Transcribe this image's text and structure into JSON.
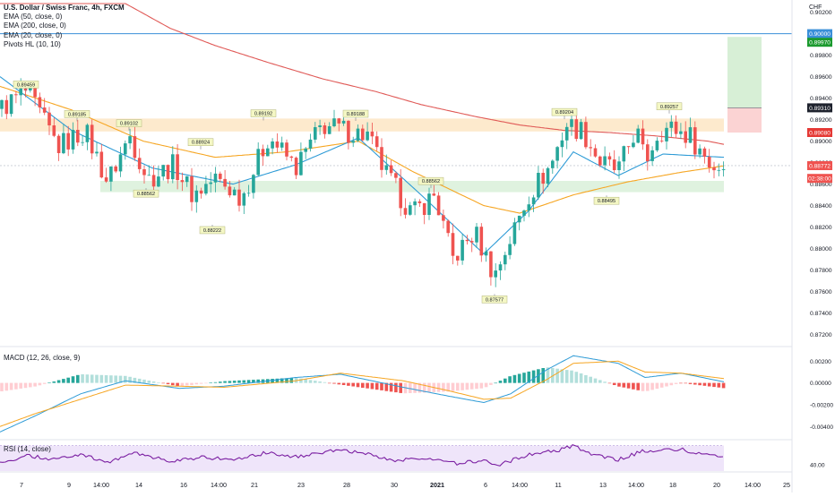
{
  "header": {
    "title": "U.S. Dollar / Swiss Franc, 4h, FXCM",
    "indicators": [
      "EMA (50, close, 0)",
      "EMA (200, close, 0)",
      "EMA (20, close, 0)",
      "Pivots HL (10, 10)"
    ],
    "currency": "CHF"
  },
  "macd_label": "MACD (12, 26, close, 9)",
  "rsi_label": "RSI (14, close)",
  "colors": {
    "up": "#26a69a",
    "down": "#ef5350",
    "ema50": "#f6a623",
    "ema200": "#e05a57",
    "ema20": "#2e9bd6",
    "target_zone": "#d7efd6",
    "stop_zone": "#fbd3d3",
    "resistance_zone": "#fde6c4",
    "support_zone": "#dcf1dc",
    "hline": "#3a8fd8",
    "rsi_line": "#7b1fa2",
    "rsi_band": "#efe5fa"
  },
  "chart_data": {
    "type": "candlestick",
    "y_range": [
      0.8713,
      0.9028
    ],
    "y_ticks": [
      "0.90200",
      "0.90000",
      "0.89800",
      "0.89600",
      "0.89400",
      "0.89200",
      "0.89000",
      "0.88800",
      "0.88600",
      "0.88400",
      "0.88200",
      "0.88000",
      "0.87800",
      "0.87600",
      "0.87400",
      "0.87200"
    ],
    "x_ticks": [
      "7",
      "9",
      "14:00",
      "14",
      "16",
      "14:00",
      "21",
      "23",
      "28",
      "30",
      "2021",
      "6",
      "14:00",
      "11",
      "13",
      "14:00",
      "18",
      "20",
      "14:00",
      "25"
    ],
    "price_labels": [
      {
        "text": "0.90000",
        "kind": "hline"
      },
      {
        "text": "0.89970",
        "kind": "target"
      },
      {
        "text": "0.89310",
        "kind": "entry"
      },
      {
        "text": "0.89080",
        "kind": "stop"
      },
      {
        "text": "0.88772",
        "kind": "last"
      },
      {
        "text": "02:38:00",
        "kind": "countdown"
      }
    ],
    "pivots": [
      {
        "label": "0.89459",
        "x": 29,
        "value": 0.8946,
        "side": "high"
      },
      {
        "label": "0.89185",
        "x": 86,
        "value": 0.89185,
        "side": "high"
      },
      {
        "label": "0.89102",
        "x": 144,
        "value": 0.891,
        "side": "high"
      },
      {
        "label": "0.88924",
        "x": 224,
        "value": 0.88924,
        "side": "high"
      },
      {
        "label": "0.89192",
        "x": 294,
        "value": 0.89192,
        "side": "high"
      },
      {
        "label": "0.89188",
        "x": 397,
        "value": 0.89188,
        "side": "high"
      },
      {
        "label": "0.88562",
        "x": 481,
        "value": 0.88562,
        "side": "high"
      },
      {
        "label": "0.89204",
        "x": 630,
        "value": 0.89204,
        "side": "high"
      },
      {
        "label": "0.89257",
        "x": 747,
        "value": 0.89257,
        "side": "high"
      },
      {
        "label": "0.88562",
        "x": 163,
        "value": 0.88562,
        "side": "low"
      },
      {
        "label": "0.88222",
        "x": 237,
        "value": 0.88222,
        "side": "low"
      },
      {
        "label": "0.87577",
        "x": 552,
        "value": 0.87577,
        "side": "low"
      },
      {
        "label": "0.88495",
        "x": 677,
        "value": 0.88495,
        "side": "low"
      }
    ],
    "zones": {
      "resistance": [
        0.8909,
        0.8921
      ],
      "support": [
        0.88525,
        0.8863
      ],
      "target": [
        0.8931,
        0.8997
      ],
      "stop": [
        0.8908,
        0.8931
      ]
    },
    "ema200": [
      [
        0.9028,
        140
      ],
      [
        0.9005,
        190
      ],
      [
        0.8989,
        240
      ],
      [
        0.8973,
        300
      ],
      [
        0.8958,
        360
      ],
      [
        0.8946,
        420
      ],
      [
        0.8934,
        470
      ],
      [
        0.8923,
        530
      ],
      [
        0.8915,
        580
      ],
      [
        0.891,
        630
      ],
      [
        0.8908,
        680
      ],
      [
        0.8905,
        730
      ],
      [
        0.89,
        790
      ],
      [
        0.8897,
        808
      ]
    ],
    "ema50": [
      [
        0.8951,
        0
      ],
      [
        0.8929,
        80
      ],
      [
        0.89,
        160
      ],
      [
        0.8885,
        240
      ],
      [
        0.889,
        320
      ],
      [
        0.89,
        400
      ],
      [
        0.8872,
        460
      ],
      [
        0.884,
        540
      ],
      [
        0.8833,
        580
      ],
      [
        0.885,
        640
      ],
      [
        0.8862,
        700
      ],
      [
        0.8871,
        760
      ],
      [
        0.8877,
        808
      ]
    ],
    "ema20": [
      [
        0.896,
        0
      ],
      [
        0.891,
        80
      ],
      [
        0.8875,
        170
      ],
      [
        0.886,
        260
      ],
      [
        0.8878,
        330
      ],
      [
        0.8903,
        400
      ],
      [
        0.885,
        470
      ],
      [
        0.8795,
        540
      ],
      [
        0.8835,
        590
      ],
      [
        0.889,
        640
      ],
      [
        0.8868,
        690
      ],
      [
        0.8888,
        740
      ],
      [
        0.8885,
        808
      ]
    ],
    "ohlc_waypoints": [
      [
        0.893,
        0
      ],
      [
        0.8946,
        29
      ],
      [
        0.8895,
        65
      ],
      [
        0.891,
        95
      ],
      [
        0.8862,
        120
      ],
      [
        0.8905,
        145
      ],
      [
        0.8865,
        165
      ],
      [
        0.8878,
        195
      ],
      [
        0.885,
        215
      ],
      [
        0.8865,
        240
      ],
      [
        0.8848,
        270
      ],
      [
        0.8905,
        300
      ],
      [
        0.8875,
        330
      ],
      [
        0.8915,
        360
      ],
      [
        0.8905,
        410
      ],
      [
        0.887,
        430
      ],
      [
        0.8832,
        460
      ],
      [
        0.885,
        485
      ],
      [
        0.879,
        505
      ],
      [
        0.8815,
        530
      ],
      [
        0.8775,
        552
      ],
      [
        0.88,
        565
      ],
      [
        0.885,
        590
      ],
      [
        0.8878,
        615
      ],
      [
        0.8916,
        632
      ],
      [
        0.891,
        650
      ],
      [
        0.888,
        670
      ],
      [
        0.8872,
        690
      ],
      [
        0.8912,
        710
      ],
      [
        0.888,
        720
      ],
      [
        0.891,
        735
      ],
      [
        0.8912,
        750
      ],
      [
        0.8905,
        770
      ],
      [
        0.8876,
        795
      ],
      [
        0.8877,
        808
      ]
    ],
    "macd": {
      "label": "MACD (12, 26, close, 9)",
      "y_range": [
        -0.0048,
        0.0026
      ],
      "ticks": [
        "0.00200",
        "0.00000",
        "-0.00200",
        "-0.00400"
      ],
      "macd_line": [
        [
          -0.0045,
          0
        ],
        [
          -0.003,
          40
        ],
        [
          -0.001,
          90
        ],
        [
          0.0002,
          140
        ],
        [
          -0.0005,
          200
        ],
        [
          -0.0003,
          250
        ],
        [
          0.0005,
          330
        ],
        [
          0.0008,
          380
        ],
        [
          -0.0004,
          450
        ],
        [
          -0.0012,
          500
        ],
        [
          -0.0018,
          540
        ],
        [
          -0.001,
          570
        ],
        [
          0.0012,
          610
        ],
        [
          0.0025,
          640
        ],
        [
          0.0018,
          690
        ],
        [
          0.0005,
          720
        ],
        [
          0.0009,
          760
        ],
        [
          0.0001,
          808
        ]
      ],
      "signal_line": [
        [
          -0.004,
          0
        ],
        [
          -0.0028,
          40
        ],
        [
          -0.0015,
          90
        ],
        [
          -0.0002,
          140
        ],
        [
          -0.0003,
          200
        ],
        [
          -0.0004,
          250
        ],
        [
          0.0002,
          330
        ],
        [
          0.0009,
          380
        ],
        [
          0.0002,
          450
        ],
        [
          -0.0007,
          500
        ],
        [
          -0.0015,
          540
        ],
        [
          -0.0014,
          570
        ],
        [
          0.0003,
          610
        ],
        [
          0.0018,
          640
        ],
        [
          0.002,
          690
        ],
        [
          0.001,
          720
        ],
        [
          0.0009,
          760
        ],
        [
          0.0004,
          808
        ]
      ]
    },
    "rsi": {
      "label": "RSI (14, close)",
      "y_range": [
        30,
        75
      ],
      "tick": "40.00",
      "band": [
        30,
        70
      ],
      "waypoints": [
        [
          42,
          0
        ],
        [
          55,
          30
        ],
        [
          48,
          60
        ],
        [
          56,
          90
        ],
        [
          44,
          120
        ],
        [
          58,
          150
        ],
        [
          45,
          190
        ],
        [
          52,
          230
        ],
        [
          46,
          260
        ],
        [
          60,
          300
        ],
        [
          52,
          330
        ],
        [
          63,
          380
        ],
        [
          58,
          410
        ],
        [
          46,
          440
        ],
        [
          50,
          480
        ],
        [
          42,
          510
        ],
        [
          47,
          540
        ],
        [
          39,
          555
        ],
        [
          55,
          590
        ],
        [
          63,
          625
        ],
        [
          70,
          640
        ],
        [
          55,
          660
        ],
        [
          48,
          690
        ],
        [
          62,
          720
        ],
        [
          64,
          760
        ],
        [
          55,
          790
        ],
        [
          54,
          808
        ]
      ]
    }
  }
}
